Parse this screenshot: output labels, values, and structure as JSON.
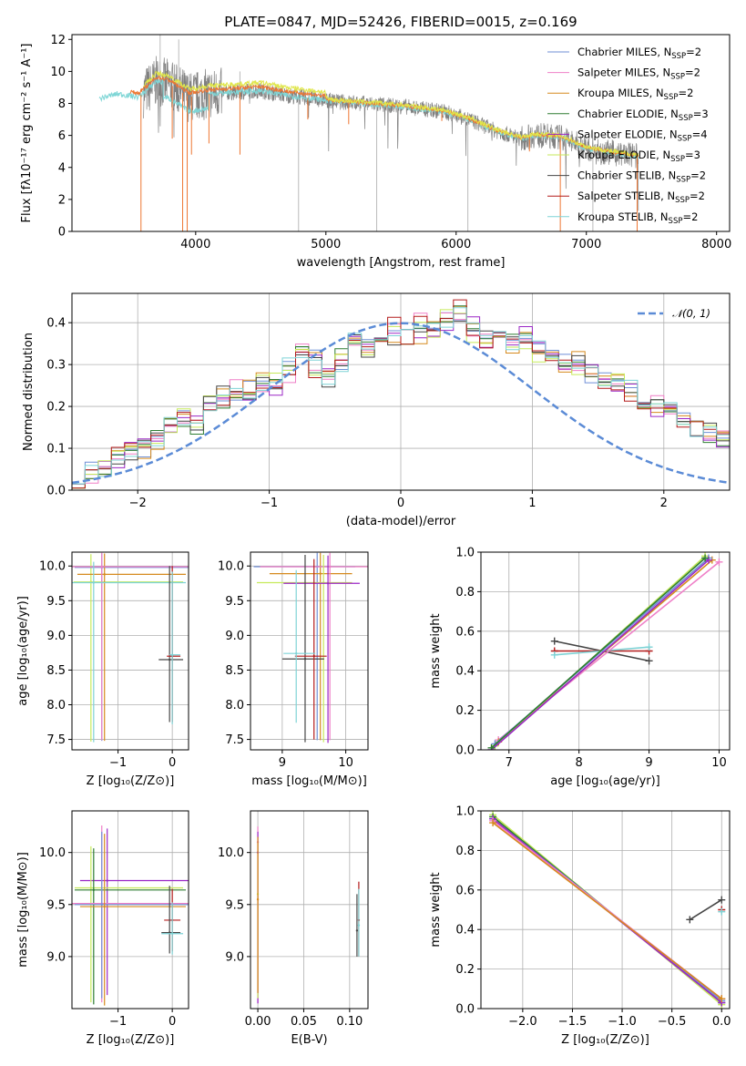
{
  "colors": {
    "chabrier_miles": "#6f8fd6",
    "salpeter_miles": "#ef7fc7",
    "kroupa_miles": "#d68a1e",
    "chabrier_elodie": "#2e7d32",
    "salpeter_elodie": "#9b27c6",
    "kroupa_elodie": "#c6ea5a",
    "chabrier_stelib": "#454545",
    "salpeter_stelib": "#b31b1b",
    "kroupa_stelib": "#7ed3d6",
    "data": "#808080",
    "model_orange": "#ee7733",
    "model_yellow": "#e0e64a",
    "model_cyan": "#7fd6d6",
    "gauss": "#5b8bd6"
  },
  "chart_data": [
    {
      "id": "spectrum",
      "type": "line",
      "title": "PLATE=0847, MJD=52426, FIBERID=0015, z=0.169",
      "xlabel": "wavelength [Angstrom, rest frame]",
      "ylabel": "Flux [fλ10⁻¹⁷ erg cm⁻² s⁻¹ A⁻¹]",
      "xlim": [
        3050,
        8100
      ],
      "ylim": [
        0,
        12.3
      ],
      "xticks": [
        4000,
        5000,
        6000,
        7000,
        8000
      ],
      "yticks": [
        0,
        2,
        4,
        6,
        8,
        10,
        12
      ],
      "grid": false,
      "legend_position": "top-right",
      "legend": [
        {
          "label": "Chabrier MILES, N",
          "sub": "SSP",
          "suffix": "=2",
          "color_key": "chabrier_miles"
        },
        {
          "label": "Salpeter MILES, N",
          "sub": "SSP",
          "suffix": "=2",
          "color_key": "salpeter_miles"
        },
        {
          "label": "Kroupa MILES, N",
          "sub": "SSP",
          "suffix": "=2",
          "color_key": "kroupa_miles"
        },
        {
          "label": "Chabrier ELODIE, N",
          "sub": "SSP",
          "suffix": "=3",
          "color_key": "chabrier_elodie"
        },
        {
          "label": "Salpeter ELODIE, N",
          "sub": "SSP",
          "suffix": "=4",
          "color_key": "salpeter_elodie"
        },
        {
          "label": "Kroupa ELODIE, N",
          "sub": "SSP",
          "suffix": "=3",
          "color_key": "kroupa_elodie"
        },
        {
          "label": "Chabrier STELIB, N",
          "sub": "SSP",
          "suffix": "=2",
          "color_key": "chabrier_stelib"
        },
        {
          "label": "Salpeter STELIB, N",
          "sub": "SSP",
          "suffix": "=2",
          "color_key": "salpeter_stelib"
        },
        {
          "label": "Kroupa STELIB, N",
          "sub": "SSP",
          "suffix": "=2",
          "color_key": "kroupa_stelib"
        }
      ],
      "continuum_points": [
        [
          3260,
          8.3
        ],
        [
          3400,
          8.6
        ],
        [
          3560,
          8.4
        ],
        [
          3650,
          9.0
        ],
        [
          3700,
          9.4
        ],
        [
          3800,
          9.2
        ],
        [
          3950,
          8.4
        ],
        [
          4100,
          8.6
        ],
        [
          4300,
          8.7
        ],
        [
          4500,
          8.8
        ],
        [
          4700,
          8.5
        ],
        [
          4900,
          8.3
        ],
        [
          5100,
          8.1
        ],
        [
          5300,
          8.0
        ],
        [
          5600,
          7.8
        ],
        [
          5900,
          7.5
        ],
        [
          6100,
          7.0
        ],
        [
          6300,
          6.3
        ],
        [
          6500,
          5.8
        ],
        [
          6600,
          6.0
        ],
        [
          6800,
          5.9
        ],
        [
          7000,
          5.2
        ],
        [
          7200,
          4.9
        ],
        [
          7400,
          4.7
        ]
      ],
      "absorption_lines": [
        [
          3580,
          0
        ],
        [
          3820,
          5.8
        ],
        [
          3900,
          0
        ],
        [
          3935,
          0
        ],
        [
          3968,
          4.8
        ],
        [
          4102,
          5.5
        ],
        [
          4340,
          4.8
        ],
        [
          4861,
          7.0
        ],
        [
          5175,
          6.7
        ],
        [
          5890,
          6.9
        ],
        [
          6563,
          5.0
        ],
        [
          6800,
          0
        ],
        [
          7390,
          0
        ]
      ],
      "emission_lines": [
        [
          3727,
          12.3
        ],
        [
          3870,
          12.0
        ],
        [
          4340,
          10.0
        ],
        [
          4790,
          0
        ],
        [
          5390,
          0
        ],
        [
          6090,
          0
        ],
        [
          7050,
          0
        ]
      ]
    },
    {
      "id": "residuals",
      "type": "bar",
      "xlabel": "(data-model)/error",
      "ylabel": "Normed distribution",
      "xlim": [
        -2.5,
        2.5
      ],
      "ylim": [
        0,
        0.47
      ],
      "xticks": [
        -2,
        -1,
        0,
        1,
        2
      ],
      "yticks": [
        0.0,
        0.1,
        0.2,
        0.3,
        0.4
      ],
      "grid": true,
      "legend_position": "top-right",
      "legend_label": "𝒩(0, 1)",
      "bin_width": 0.1,
      "bin_start": -2.5,
      "reference_curve": "standard normal",
      "series_bins": [
        [
          0.04,
          0.045,
          0.05,
          0.07,
          0.09,
          0.1,
          0.12,
          0.16,
          0.17,
          0.16,
          0.2,
          0.23,
          0.22,
          0.24,
          0.26,
          0.24,
          0.3,
          0.32,
          0.31,
          0.27,
          0.3,
          0.35,
          0.34,
          0.38,
          0.36,
          0.38,
          0.37,
          0.39,
          0.4,
          0.42,
          0.39,
          0.36,
          0.38,
          0.35,
          0.37,
          0.34,
          0.33,
          0.3,
          0.31,
          0.28,
          0.27,
          0.25,
          0.24,
          0.22,
          0.2,
          0.19,
          0.17,
          0.15,
          0.14,
          0.12,
          0.11,
          0.1,
          0.09,
          0.08,
          0.07,
          0.06,
          0.05,
          0.04,
          0.035,
          0.03
        ],
        [
          0.03,
          0.04,
          0.06,
          0.08,
          0.1,
          0.11,
          0.13,
          0.15,
          0.17,
          0.15,
          0.21,
          0.22,
          0.24,
          0.23,
          0.25,
          0.26,
          0.28,
          0.33,
          0.29,
          0.28,
          0.32,
          0.36,
          0.33,
          0.35,
          0.39,
          0.37,
          0.4,
          0.38,
          0.41,
          0.43,
          0.37,
          0.35,
          0.37,
          0.36,
          0.36,
          0.33,
          0.32,
          0.31,
          0.3,
          0.29,
          0.26,
          0.26,
          0.23,
          0.21,
          0.21,
          0.18,
          0.16,
          0.16,
          0.13,
          0.13,
          0.1,
          0.1,
          0.08,
          0.08,
          0.06,
          0.06,
          0.05,
          0.04,
          0.03,
          0.03
        ]
      ]
    },
    {
      "id": "age-vs-z",
      "type": "scatter",
      "xlabel": "Z [log₁₀(Z/Z⊙)]",
      "ylabel": "age  [log₁₀(age/yr)]",
      "xlim": [
        -1.85,
        0.3
      ],
      "ylim": [
        7.35,
        10.2
      ],
      "xticks": [
        -1,
        0
      ],
      "yticks": [
        7.5,
        8.0,
        8.5,
        9.0,
        9.5,
        10.0
      ],
      "grid": true
    },
    {
      "id": "age-vs-mass",
      "type": "scatter",
      "xlabel": "mass [log₁₀(M/M⊙)]",
      "ylabel": "",
      "xlim": [
        8.5,
        10.35
      ],
      "ylim": [
        7.35,
        10.2
      ],
      "xticks": [
        9,
        10
      ],
      "yticks": [
        7.5,
        8.0,
        8.5,
        9.0,
        9.5,
        10.0
      ],
      "grid": true
    },
    {
      "id": "weight-vs-age",
      "type": "line",
      "xlabel": "age  [log₁₀(age/yr)]",
      "ylabel": "mass weight",
      "xlim": [
        6.6,
        10.15
      ],
      "ylim": [
        0,
        1
      ],
      "xticks": [
        7,
        8,
        9,
        10
      ],
      "yticks": [
        0.0,
        0.2,
        0.4,
        0.6,
        0.8,
        1.0
      ],
      "grid": true
    },
    {
      "id": "mass-vs-z",
      "type": "scatter",
      "xlabel": "Z [log₁₀(Z/Z⊙)]",
      "ylabel": "mass [log₁₀(M/M⊙)]",
      "xlim": [
        -1.85,
        0.3
      ],
      "ylim": [
        8.5,
        10.4
      ],
      "xticks": [
        -1,
        0
      ],
      "yticks": [
        9.0,
        9.5,
        10.0
      ],
      "grid": true
    },
    {
      "id": "mass-vs-ebv",
      "type": "scatter",
      "xlabel": "E(B-V)",
      "ylabel": "",
      "xlim": [
        -0.008,
        0.12
      ],
      "ylim": [
        8.5,
        10.4
      ],
      "xticks": [
        0.0,
        0.05,
        0.1
      ],
      "xticklabels": [
        "0.00",
        "0.05",
        "0.10"
      ],
      "yticks": [
        9.0,
        9.5,
        10.0
      ],
      "grid": true
    },
    {
      "id": "weight-vs-z",
      "type": "line",
      "xlabel": "Z [log₁₀(Z/Z⊙)]",
      "ylabel": "mass weight",
      "xlim": [
        -2.42,
        0.08
      ],
      "ylim": [
        0,
        1
      ],
      "xticks": [
        -2.0,
        -1.5,
        -1.0,
        -0.5,
        0.0
      ],
      "yticks": [
        0.0,
        0.2,
        0.4,
        0.6,
        0.8,
        1.0
      ],
      "grid": true
    }
  ],
  "stellar_populations": {
    "age_vs_z": [
      {
        "color_key": "kroupa_elodie",
        "x": -1.5,
        "xerr": [
          0.32,
          1.7
        ],
        "y": 9.77,
        "yerr": [
          2.3,
          0.4
        ]
      },
      {
        "color_key": "chabrier_miles",
        "x": -1.3,
        "xerr": [
          0.5,
          1.6
        ],
        "y": 9.98,
        "yerr": [
          2.5,
          0.2
        ]
      },
      {
        "color_key": "kroupa_miles",
        "x": -1.25,
        "xerr": [
          0.5,
          1.5
        ],
        "y": 9.88,
        "yerr": [
          2.4,
          0.3
        ]
      },
      {
        "color_key": "salpeter_miles",
        "x": -1.3,
        "xerr": [
          0.55,
          1.6
        ],
        "y": 9.99,
        "yerr": [
          2.5,
          0.2
        ]
      },
      {
        "color_key": "kroupa_stelib",
        "x": -1.45,
        "xerr": [
          0.4,
          1.7
        ],
        "y": 9.76,
        "yerr": [
          2.3,
          0.3
        ]
      },
      {
        "color_key": "chabrier_stelib",
        "x": -0.05,
        "xerr": [
          0.2,
          0.25
        ],
        "y": 8.65,
        "yerr": [
          0.9,
          1.35
        ]
      },
      {
        "color_key": "salpeter_stelib",
        "x": 0.0,
        "xerr": [
          0.1,
          0.15
        ],
        "y": 8.7,
        "yerr": [
          0.95,
          1.3
        ]
      },
      {
        "color_key": "kroupa_stelib",
        "x": 0.0,
        "xerr": [
          0.05,
          0.15
        ],
        "y": 8.72,
        "yerr": [
          1.0,
          1.2
        ]
      }
    ],
    "age_vs_mass": [
      {
        "color_key": "chabrier_miles",
        "x": 9.55,
        "xerr": [
          1.0,
          0.6
        ],
        "y": 9.99,
        "yerr": [
          2.5,
          0.2
        ]
      },
      {
        "color_key": "kroupa_miles",
        "x": 9.6,
        "xerr": [
          0.8,
          0.5
        ],
        "y": 9.89,
        "yerr": [
          2.4,
          0.3
        ]
      },
      {
        "color_key": "salpeter_miles",
        "x": 9.75,
        "xerr": [
          1.1,
          0.6
        ],
        "y": 9.99,
        "yerr": [
          2.5,
          0.2
        ]
      },
      {
        "color_key": "kroupa_elodie",
        "x": 9.65,
        "xerr": [
          1.05,
          0.45
        ],
        "y": 9.76,
        "yerr": [
          2.3,
          0.4
        ]
      },
      {
        "color_key": "salpeter_elodie",
        "x": 9.72,
        "xerr": [
          0.7,
          0.5
        ],
        "y": 9.75,
        "yerr": [
          2.3,
          0.4
        ]
      },
      {
        "color_key": "chabrier_stelib",
        "x": 9.36,
        "xerr": [
          0.36,
          0.3
        ],
        "y": 8.66,
        "yerr": [
          1.2,
          1.5
        ]
      },
      {
        "color_key": "salpeter_stelib",
        "x": 9.5,
        "xerr": [
          0.3,
          0.2
        ],
        "y": 8.7,
        "yerr": [
          1.2,
          1.4
        ]
      },
      {
        "color_key": "kroupa_stelib",
        "x": 9.22,
        "xerr": [
          0.2,
          0.3
        ],
        "y": 8.74,
        "yerr": [
          1.0,
          1.2
        ]
      }
    ],
    "weight_vs_age": [
      {
        "color_key": "chabrier_stelib",
        "points": [
          [
            7.65,
            0.55
          ],
          [
            9.0,
            0.45
          ]
        ]
      },
      {
        "color_key": "salpeter_stelib",
        "points": [
          [
            7.65,
            0.5
          ],
          [
            9.0,
            0.5
          ]
        ]
      },
      {
        "color_key": "kroupa_stelib",
        "points": [
          [
            7.65,
            0.48
          ],
          [
            9.0,
            0.52
          ]
        ]
      },
      {
        "color_key": "salpeter_miles",
        "points": [
          [
            6.85,
            0.05
          ],
          [
            10.0,
            0.95
          ]
        ]
      },
      {
        "color_key": "kroupa_miles",
        "points": [
          [
            6.85,
            0.04
          ],
          [
            9.9,
            0.96
          ]
        ]
      },
      {
        "color_key": "kroupa_elodie",
        "points": [
          [
            6.8,
            0.02
          ],
          [
            9.8,
            0.98
          ]
        ]
      },
      {
        "color_key": "chabrier_miles",
        "points": [
          [
            6.8,
            0.03
          ],
          [
            9.85,
            0.97
          ]
        ]
      },
      {
        "color_key": "salpeter_elodie",
        "points": [
          [
            6.75,
            0.0
          ],
          [
            9.85,
            0.96
          ]
        ]
      },
      {
        "color_key": "chabrier_elodie",
        "points": [
          [
            6.75,
            0.01
          ],
          [
            9.8,
            0.97
          ]
        ]
      }
    ],
    "mass_vs_z": [
      {
        "color_key": "salpeter_elodie",
        "x": -1.2,
        "xerr": [
          0.5,
          1.5
        ],
        "y": 9.73,
        "yerr": [
          1.1,
          0.5
        ]
      },
      {
        "color_key": "kroupa_elodie",
        "x": -1.5,
        "xerr": [
          0.3,
          1.7
        ],
        "y": 9.66,
        "yerr": [
          1.1,
          0.4
        ]
      },
      {
        "color_key": "chabrier_elodie",
        "x": -1.45,
        "xerr": [
          0.35,
          1.7
        ],
        "y": 9.64,
        "yerr": [
          1.1,
          0.4
        ]
      },
      {
        "color_key": "salpeter_miles",
        "x": -1.3,
        "xerr": [
          0.55,
          1.6
        ],
        "y": 9.51,
        "yerr": [
          0.95,
          0.75
        ]
      },
      {
        "color_key": "chabrier_miles",
        "x": -1.3,
        "xerr": [
          0.5,
          1.6
        ],
        "y": 9.5,
        "yerr": [
          0.9,
          0.7
        ]
      },
      {
        "color_key": "kroupa_miles",
        "x": -1.25,
        "xerr": [
          0.45,
          1.5
        ],
        "y": 9.48,
        "yerr": [
          0.95,
          0.7
        ]
      },
      {
        "color_key": "salpeter_stelib",
        "x": 0.0,
        "xerr": [
          0.15,
          0.15
        ],
        "y": 9.35,
        "yerr": [
          0.3,
          0.3
        ]
      },
      {
        "color_key": "chabrier_stelib",
        "x": -0.05,
        "xerr": [
          0.15,
          0.2
        ],
        "y": 9.23,
        "yerr": [
          0.2,
          0.45
        ]
      },
      {
        "color_key": "kroupa_stelib",
        "x": 0.0,
        "xerr": [
          0.2,
          0.2
        ],
        "y": 9.22,
        "yerr": [
          0.2,
          0.3
        ]
      }
    ],
    "mass_vs_ebv": [
      {
        "color_key": "salpeter_miles",
        "x": 0.0,
        "y": 10.1,
        "yerr": [
          1.55,
          0.15
        ]
      },
      {
        "color_key": "salpeter_elodie",
        "x": 0.0,
        "y": 10.0,
        "yerr": [
          1.45,
          0.2
        ]
      },
      {
        "color_key": "kroupa_elodie",
        "x": 0.0,
        "y": 9.6,
        "yerr": [
          1.0,
          0.5
        ]
      },
      {
        "color_key": "kroupa_miles",
        "x": 0.0,
        "y": 9.55,
        "yerr": [
          0.9,
          0.6
        ]
      },
      {
        "color_key": "salpeter_stelib",
        "x": 0.11,
        "y": 9.35,
        "yerr": [
          0.35,
          0.37
        ]
      },
      {
        "color_key": "kroupa_stelib",
        "x": 0.11,
        "y": 9.3,
        "yerr": [
          0.3,
          0.35
        ]
      },
      {
        "color_key": "chabrier_stelib",
        "x": 0.108,
        "y": 9.25,
        "yerr": [
          0.25,
          0.35
        ]
      }
    ],
    "weight_vs_z": [
      {
        "color_key": "chabrier_stelib",
        "points": [
          [
            -0.32,
            0.45
          ],
          [
            0.0,
            0.55
          ]
        ]
      },
      {
        "color_key": "salpeter_stelib",
        "points": [
          [
            0.0,
            0.5
          ]
        ]
      },
      {
        "color_key": "kroupa_stelib",
        "points": [
          [
            0.0,
            0.49
          ]
        ]
      },
      {
        "color_key": "kroupa_elodie",
        "points": [
          [
            -2.3,
            0.98
          ],
          [
            0.0,
            0.02
          ]
        ]
      },
      {
        "color_key": "chabrier_elodie",
        "points": [
          [
            -2.3,
            0.97
          ],
          [
            0.0,
            0.03
          ]
        ]
      },
      {
        "color_key": "chabrier_miles",
        "points": [
          [
            -2.3,
            0.96
          ],
          [
            0.0,
            0.04
          ]
        ]
      },
      {
        "color_key": "salpeter_elodie",
        "points": [
          [
            -2.3,
            0.96
          ],
          [
            0.0,
            0.03
          ]
        ]
      },
      {
        "color_key": "salpeter_miles",
        "points": [
          [
            -2.3,
            0.95
          ],
          [
            0.0,
            0.05
          ]
        ]
      },
      {
        "color_key": "kroupa_miles",
        "points": [
          [
            -2.3,
            0.94
          ],
          [
            0.0,
            0.05
          ]
        ]
      }
    ]
  }
}
